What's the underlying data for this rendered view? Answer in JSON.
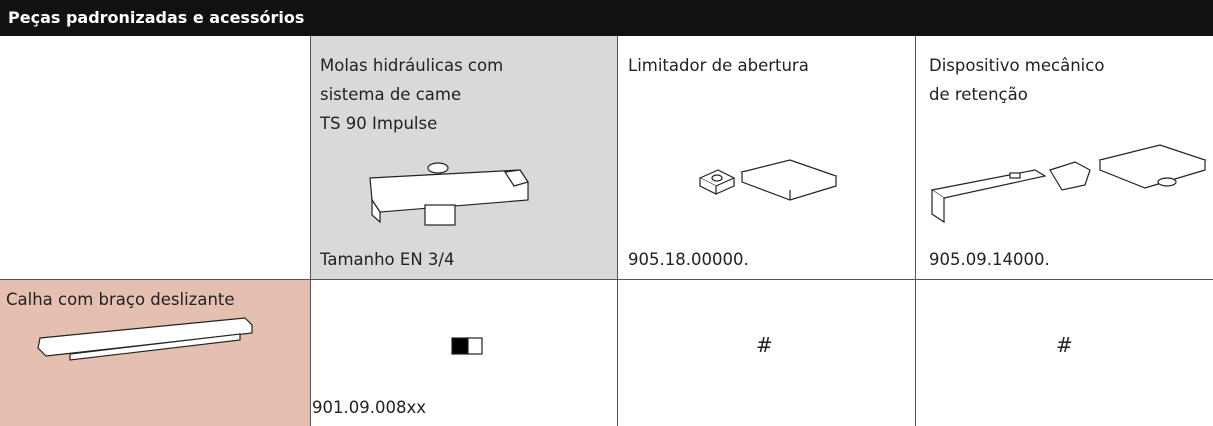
{
  "header": {
    "title": "Peças padronizadas e acessórios"
  },
  "columns": [
    {
      "lines": [
        "Molas hidráulicas com",
        "sistema de came",
        "TS 90 Impulse"
      ],
      "code": "Tamanho EN 3/4"
    },
    {
      "lines": [
        "Limitador de abertura"
      ],
      "code": "905.18.00000."
    },
    {
      "lines": [
        "Dispositivo mecânico",
        "de retenção"
      ],
      "code": "905.09.14000."
    }
  ],
  "row": {
    "label": "Calha com braço deslizante",
    "cells": [
      "901.09.008xx",
      "#",
      "#"
    ]
  }
}
